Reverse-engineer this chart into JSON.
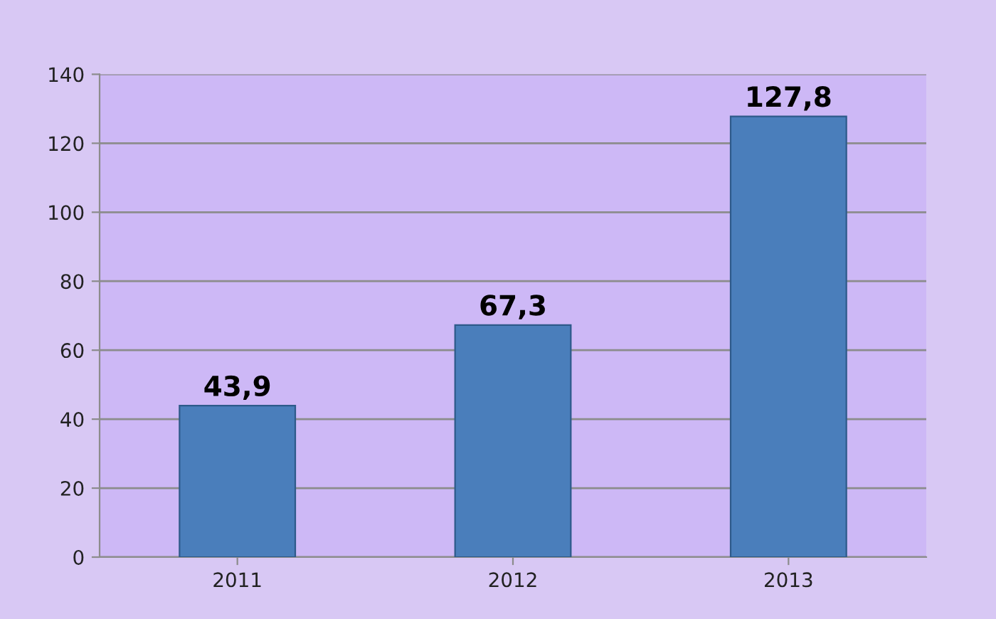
{
  "chart_data": {
    "type": "bar",
    "categories": [
      "2011",
      "2012",
      "2013"
    ],
    "values": [
      43.9,
      67.3,
      127.8
    ],
    "value_labels": [
      "43,9",
      "67,3",
      "127,8"
    ],
    "color": "#4a7ebb",
    "ylim": [
      0,
      140
    ],
    "yticks": [
      0,
      20,
      40,
      60,
      80,
      100,
      120,
      140
    ],
    "grid": "y",
    "legend": false
  }
}
